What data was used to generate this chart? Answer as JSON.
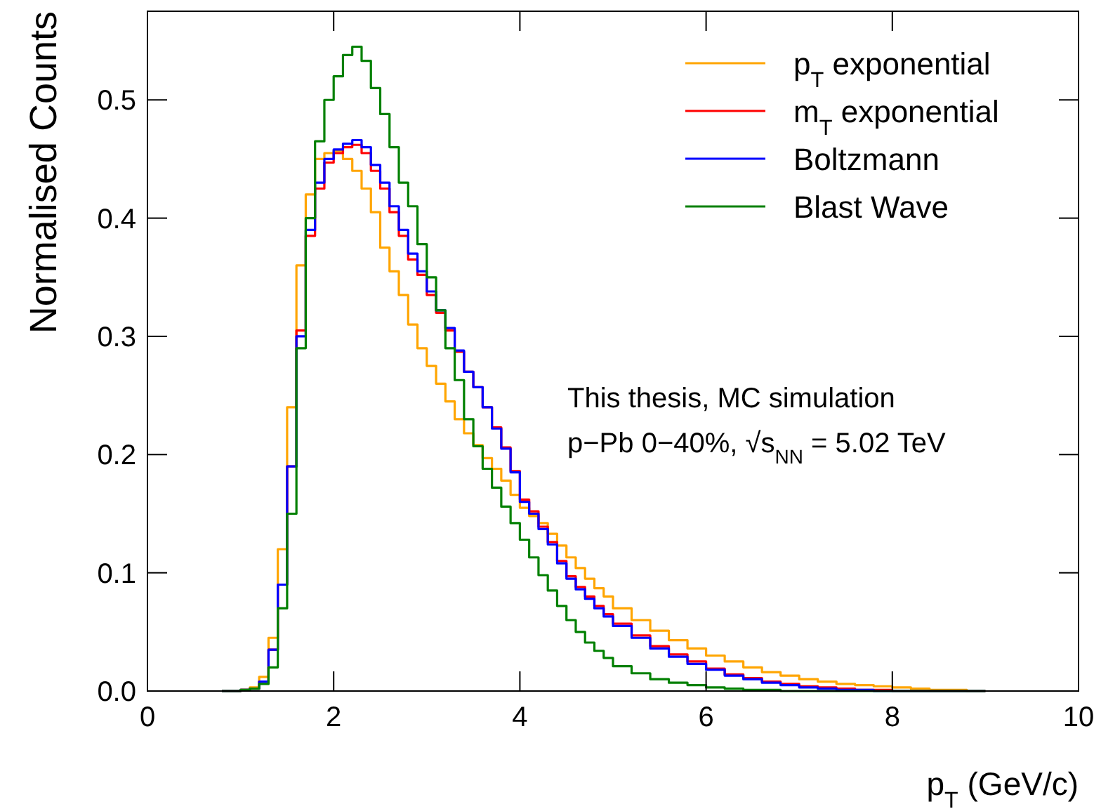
{
  "chart_data": {
    "type": "histogram",
    "xlabel": "p$_{T}$ (GeV/c)",
    "ylabel": "Normalised Counts",
    "bins": [
      0.8,
      0.9,
      1.0,
      1.1,
      1.2,
      1.3,
      1.4,
      1.5,
      1.6,
      1.7,
      1.8,
      1.9,
      2.0,
      2.1,
      2.2,
      2.3,
      2.4,
      2.5,
      2.6,
      2.7,
      2.8,
      2.9,
      3.0,
      3.1,
      3.2,
      3.3,
      3.4,
      3.5,
      3.6,
      3.7,
      3.8,
      3.9,
      4.0,
      4.1,
      4.2,
      4.3,
      4.4,
      4.5,
      4.6,
      4.7,
      4.8,
      4.9,
      5.0,
      5.2,
      5.4,
      5.6,
      5.8,
      6.0,
      6.2,
      6.4,
      6.6,
      6.8,
      7.0,
      7.2,
      7.4,
      7.6,
      7.8,
      8.0,
      8.2,
      8.4,
      8.6,
      8.8,
      9.0
    ],
    "series": [
      {
        "name": "p$_{T}$ exponential",
        "color": "#ffa500",
        "values": [
          0,
          0,
          0.001,
          0.003,
          0.012,
          0.045,
          0.12,
          0.24,
          0.36,
          0.42,
          0.45,
          0.455,
          0.457,
          0.45,
          0.44,
          0.425,
          0.405,
          0.375,
          0.355,
          0.335,
          0.31,
          0.29,
          0.275,
          0.26,
          0.245,
          0.23,
          0.218,
          0.208,
          0.197,
          0.188,
          0.178,
          0.166,
          0.155,
          0.148,
          0.142,
          0.133,
          0.123,
          0.113,
          0.104,
          0.095,
          0.087,
          0.08,
          0.07,
          0.06,
          0.051,
          0.043,
          0.036,
          0.03,
          0.025,
          0.02,
          0.016,
          0.013,
          0.01,
          0.008,
          0.006,
          0.005,
          0.004,
          0.003,
          0.002,
          0.001,
          0.001,
          0
        ]
      },
      {
        "name": "m$_{T}$ exponential",
        "color": "#ff0000",
        "values": [
          0,
          0,
          0.001,
          0.002,
          0.008,
          0.035,
          0.09,
          0.19,
          0.305,
          0.385,
          0.425,
          0.447,
          0.455,
          0.46,
          0.462,
          0.455,
          0.44,
          0.425,
          0.405,
          0.385,
          0.365,
          0.352,
          0.335,
          0.32,
          0.305,
          0.287,
          0.27,
          0.257,
          0.24,
          0.223,
          0.206,
          0.186,
          0.162,
          0.152,
          0.139,
          0.126,
          0.11,
          0.097,
          0.088,
          0.08,
          0.072,
          0.065,
          0.057,
          0.047,
          0.038,
          0.031,
          0.025,
          0.019,
          0.014,
          0.011,
          0.008,
          0.006,
          0.004,
          0.003,
          0.002,
          0.001,
          0.001,
          0,
          0,
          0,
          0,
          0
        ]
      },
      {
        "name": "Boltzmann",
        "color": "#0000ff",
        "values": [
          0,
          0,
          0.001,
          0.002,
          0.008,
          0.035,
          0.09,
          0.19,
          0.3,
          0.39,
          0.43,
          0.45,
          0.458,
          0.463,
          0.466,
          0.46,
          0.445,
          0.43,
          0.41,
          0.39,
          0.37,
          0.355,
          0.338,
          0.322,
          0.307,
          0.288,
          0.27,
          0.257,
          0.24,
          0.222,
          0.205,
          0.185,
          0.16,
          0.15,
          0.137,
          0.124,
          0.108,
          0.095,
          0.086,
          0.078,
          0.07,
          0.063,
          0.055,
          0.045,
          0.036,
          0.029,
          0.023,
          0.018,
          0.013,
          0.01,
          0.007,
          0.005,
          0.003,
          0.002,
          0.001,
          0.001,
          0,
          0,
          0,
          0,
          0,
          0
        ]
      },
      {
        "name": "Blast Wave",
        "color": "#008000",
        "values": [
          0,
          0,
          0.001,
          0.002,
          0.006,
          0.02,
          0.07,
          0.15,
          0.29,
          0.4,
          0.465,
          0.5,
          0.52,
          0.538,
          0.545,
          0.533,
          0.51,
          0.488,
          0.46,
          0.43,
          0.41,
          0.378,
          0.35,
          0.322,
          0.29,
          0.263,
          0.23,
          0.207,
          0.188,
          0.172,
          0.156,
          0.142,
          0.128,
          0.113,
          0.098,
          0.085,
          0.072,
          0.06,
          0.05,
          0.041,
          0.034,
          0.028,
          0.021,
          0.015,
          0.01,
          0.007,
          0.005,
          0.003,
          0.002,
          0.001,
          0.001,
          0,
          0,
          0,
          0,
          0,
          0,
          0,
          0,
          0,
          0,
          0
        ]
      }
    ],
    "xlim": [
      0,
      10
    ],
    "xticks": [
      0,
      2,
      4,
      6,
      8,
      10
    ],
    "ylim": [
      0,
      0.575
    ],
    "yticks": [
      {
        "value": 0,
        "label": "0.0"
      },
      0.1,
      0.2,
      0.3,
      0.4,
      0.5
    ],
    "legend": "top right",
    "grid": false,
    "annotations": [
      "This thesis, MC simulation",
      "p−Pb 0−40%, √s$_{NN}$ = 5.02 TeV"
    ]
  }
}
